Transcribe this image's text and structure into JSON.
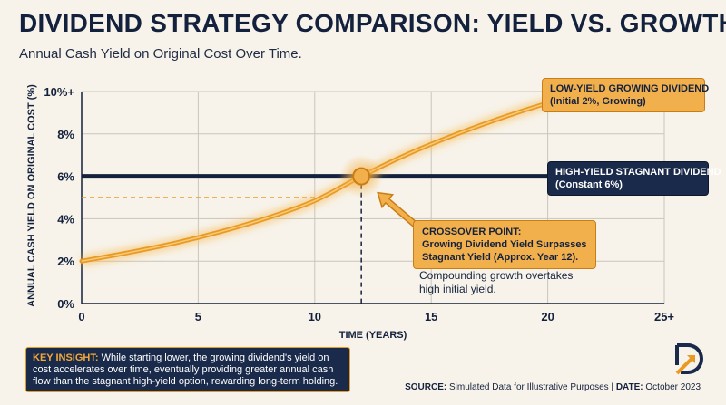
{
  "title": "DIVIDEND STRATEGY COMPARISON: YIELD VS. GROWTH",
  "subtitle": "Annual Cash Yield on Original Cost Over Time.",
  "chart_data": {
    "type": "line",
    "xlabel": "TIME (YEARS)",
    "ylabel": "ANNUAL CASH YIELD ON ORIGINAL COST (%)",
    "xlim": [
      0,
      25
    ],
    "ylim": [
      0,
      10
    ],
    "x_ticks": [
      "0",
      "5",
      "10",
      "15",
      "20",
      "25+"
    ],
    "y_ticks": [
      "0%",
      "2%",
      "4%",
      "6%",
      "8%",
      "10%+"
    ],
    "grid": true,
    "series": [
      {
        "name": "LOW-YIELD GROWING DIVIDEND",
        "color": "#e99a25",
        "x": [
          0,
          2,
          4,
          6,
          8,
          10,
          12,
          14,
          16,
          18,
          20,
          22,
          25
        ],
        "y": [
          2.0,
          2.4,
          2.85,
          3.4,
          4.05,
          4.85,
          6.0,
          7.05,
          7.95,
          8.75,
          9.45,
          9.95,
          10.0
        ]
      },
      {
        "name": "HIGH-YIELD STAGNANT DIVIDEND",
        "color": "#14213d",
        "x": [
          0,
          25
        ],
        "y": [
          6.0,
          6.0
        ]
      }
    ],
    "reference_line": {
      "y": 5.0,
      "x_end": 10
    },
    "crossover": {
      "x": 12,
      "y": 6.0
    }
  },
  "callouts": {
    "growing": {
      "line1": "LOW-YIELD GROWING DIVIDEND",
      "line2": "(Initial 2%, Growing)"
    },
    "stagnant": {
      "line1": "HIGH-YIELD STAGNANT DIVIDEND",
      "line2": "(Constant 6%)"
    },
    "crossover": {
      "line1": "CROSSOVER POINT:",
      "line2": "Growing Dividend Yield Surpasses",
      "line3": "Stagnant Yield (Approx. Year 12)."
    },
    "note": {
      "line1": "Compounding growth overtakes",
      "line2": "high initial yield."
    }
  },
  "insight": {
    "key": "KEY INSIGHT:",
    "text": " While starting lower, the growing dividend's yield on cost accelerates over time, eventually providing greater annual cash flow than the stagnant high-yield option, rewarding long-term holding."
  },
  "source": {
    "source_key": "SOURCE:",
    "source_text": " Simulated Data for Illustrative Purposes | ",
    "date_key": "DATE:",
    "date_text": " October 2023"
  },
  "logo": {
    "icon": "dividend-logo-icon"
  }
}
